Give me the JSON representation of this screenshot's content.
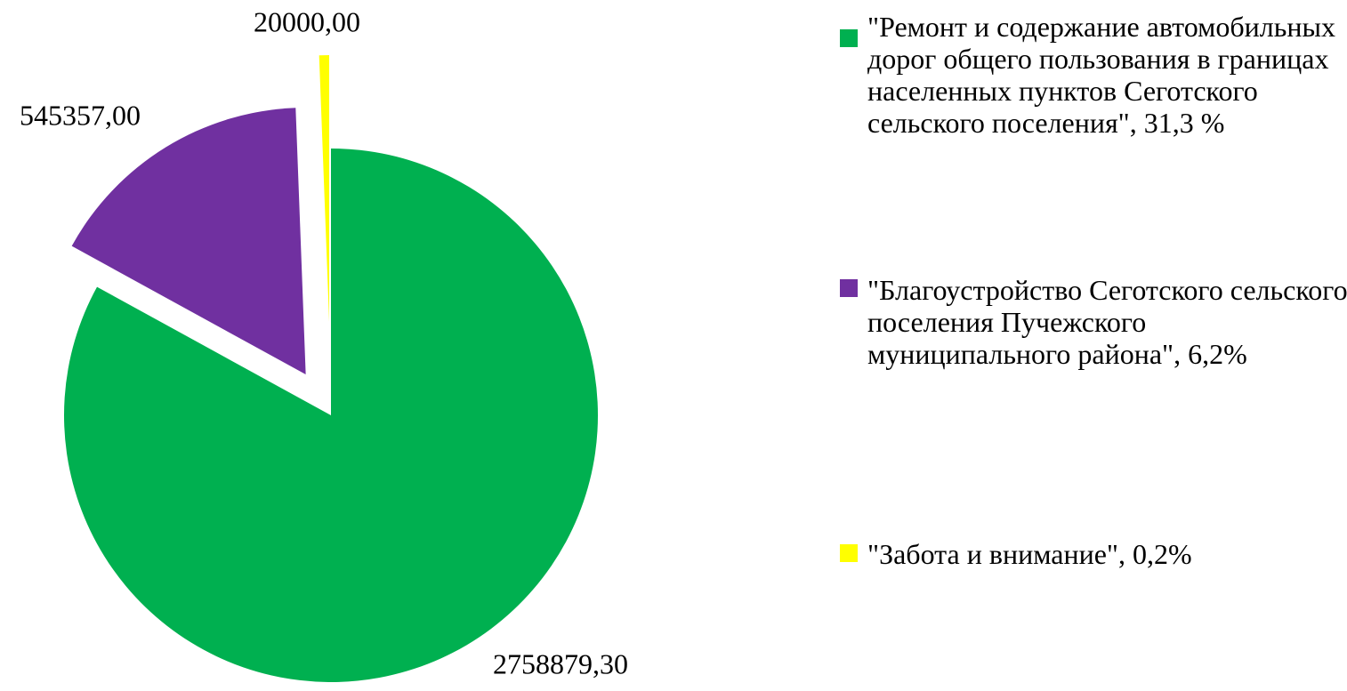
{
  "chart_data": {
    "type": "pie",
    "categories": [
      "\"Ремонт и содержание автомобильных дорог общего пользования в границах населенных пунктов Сеготского сельского поселения\", 31,3 %",
      "\"Благоустройство Сеготского сельского поселения Пучежского муниципального района\", 6,2%",
      "\"Забота и внимание\", 0,2%"
    ],
    "values": [
      2758879.3,
      545357.0,
      20000.0
    ],
    "value_labels": [
      "2758879,30",
      "545357,00",
      "20000,00"
    ],
    "colors": [
      "#00b050",
      "#7030a0",
      "#ffff00"
    ],
    "legend": "right"
  }
}
